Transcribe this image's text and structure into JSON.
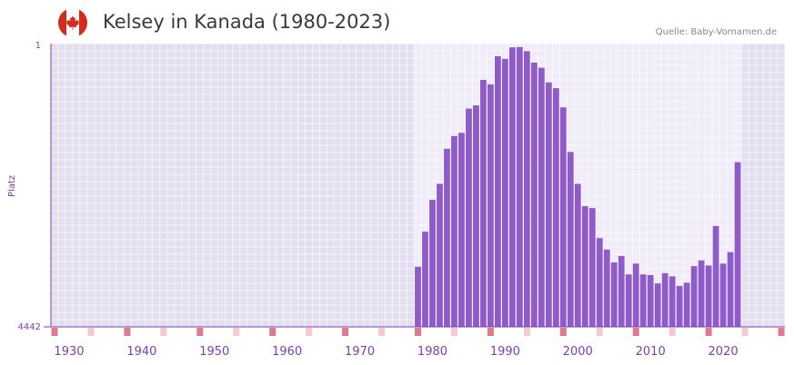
{
  "header": {
    "title": "Kelsey in Kanada (1980-2023)",
    "source": "Quelle: Baby-Vornamen.de",
    "flag_icon": "canada-flag-icon"
  },
  "colors": {
    "bar": "#8f5bc9",
    "accent": "#7b3fb5",
    "marker": "#e07a8a",
    "marker_light": "#f5c9d2"
  },
  "chart_data": {
    "type": "bar",
    "title": "Kelsey in Kanada (1980-2023)",
    "xlabel": "",
    "ylabel": "Platz",
    "y_inverted": true,
    "ylim": [
      1,
      4442
    ],
    "y_tick_labels": [
      "1",
      "4442"
    ],
    "xlim": [
      1928,
      2029
    ],
    "x_tick_labels": [
      "1930",
      "1940",
      "1950",
      "1960",
      "1970",
      "1980",
      "1990",
      "2000",
      "2010",
      "2020"
    ],
    "grid": true,
    "x": [
      1978,
      1979,
      1980,
      1981,
      1982,
      1983,
      1984,
      1985,
      1986,
      1987,
      1988,
      1989,
      1990,
      1991,
      1992,
      1993,
      1994,
      1995,
      1996,
      1997,
      1998,
      1999,
      2000,
      2001,
      2002,
      2003,
      2004,
      2005,
      2006,
      2007,
      2008,
      2009,
      2010,
      2011,
      2012,
      2013,
      2014,
      2015,
      2016,
      2017,
      2018,
      2019,
      2020,
      2021,
      2022
    ],
    "values": [
      3500,
      2950,
      2450,
      2200,
      1650,
      1450,
      1400,
      1020,
      970,
      570,
      640,
      200,
      240,
      60,
      55,
      120,
      300,
      380,
      610,
      700,
      1000,
      1700,
      2200,
      2550,
      2580,
      3050,
      3230,
      3430,
      3330,
      3620,
      3450,
      3620,
      3630,
      3760,
      3600,
      3650,
      3800,
      3750,
      3490,
      3400,
      3480,
      2860,
      3450,
      3270,
      1860
    ]
  }
}
